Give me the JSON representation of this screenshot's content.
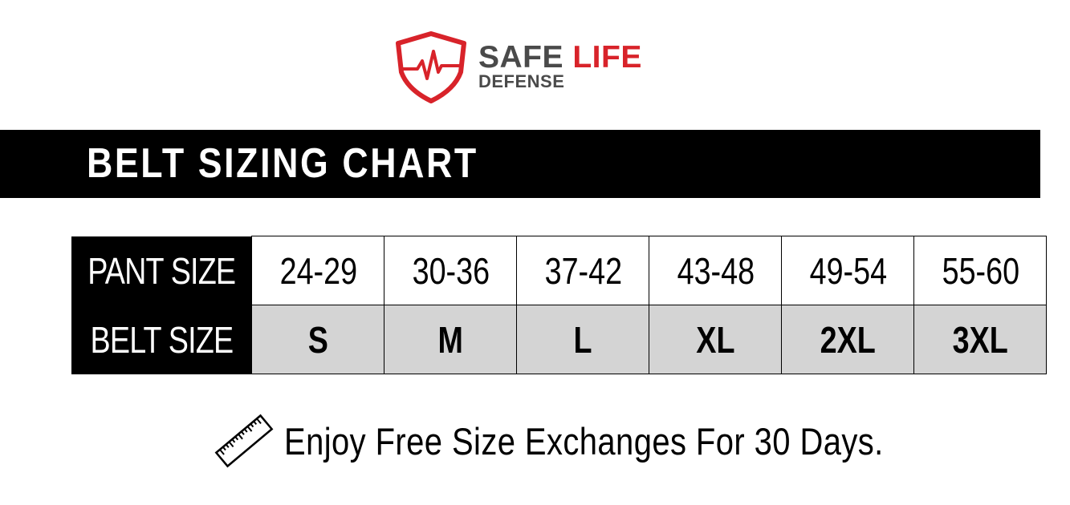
{
  "logo": {
    "word1": "SAFE",
    "word2": "LIFE",
    "word3": "DEFENSE",
    "brand_red": "#d8232a",
    "brand_gray": "#4a4a4a",
    "icon": "shield-heartbeat-icon"
  },
  "banner": {
    "title": "BELT SIZING CHART"
  },
  "table": {
    "pant_label": "PANT SIZE",
    "belt_label": "BELT SIZE",
    "pant_sizes": [
      "24-29",
      "30-36",
      "37-42",
      "43-48",
      "49-54",
      "55-60"
    ],
    "belt_sizes": [
      "S",
      "M",
      "L",
      "XL",
      "2XL",
      "3XL"
    ]
  },
  "footer": {
    "icon": "ruler-icon",
    "text": "Enjoy Free Size Exchanges For 30 Days."
  }
}
